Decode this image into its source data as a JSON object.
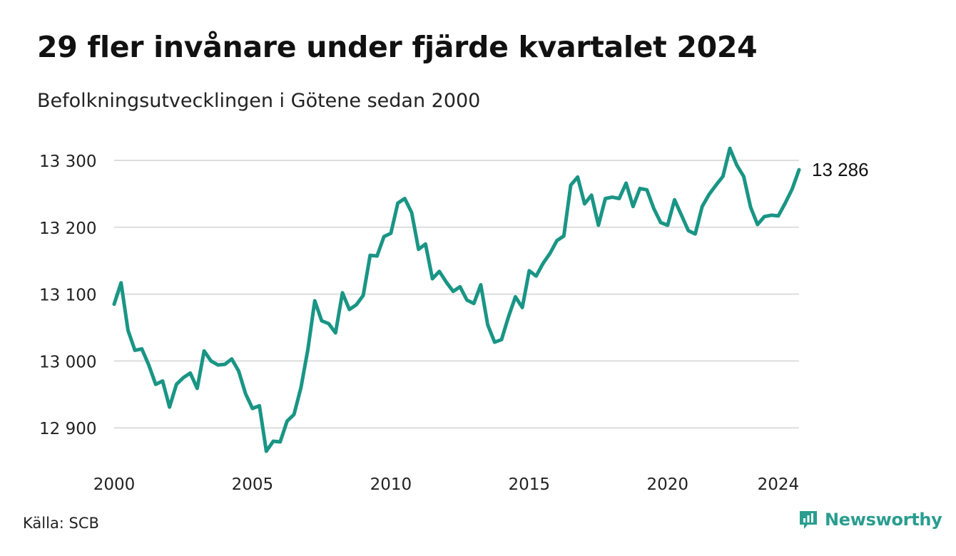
{
  "header": {
    "title": "29 fler invånare under fjärde kvartalet 2024",
    "subtitle": "Befolkningsutvecklingen i Götene sedan 2000"
  },
  "footer": {
    "source": "Källa: SCB",
    "brand": "Newsworthy",
    "brand_icon": "newsworthy-logo-icon"
  },
  "colors": {
    "line": "#1a9585",
    "grid": "#dddddd",
    "brand": "#2a9d8f"
  },
  "chart_data": {
    "type": "line",
    "title": "29 fler invånare under fjärde kvartalet 2024",
    "subtitle": "Befolkningsutvecklingen i Götene sedan 2000",
    "xlabel": "",
    "ylabel": "",
    "xlim": [
      2000.0,
      2024.75
    ],
    "ylim": [
      12860,
      13320
    ],
    "y_ticks": [
      12900,
      13000,
      13100,
      13200,
      13300
    ],
    "y_tick_labels": [
      "12 900",
      "13 000",
      "13 100",
      "13 200",
      "13 300"
    ],
    "x_ticks": [
      2000,
      2005,
      2010,
      2015,
      2020,
      2024
    ],
    "x_tick_labels": [
      "2000",
      "2005",
      "2010",
      "2015",
      "2020",
      "2024"
    ],
    "grid": "horizontal",
    "last_value_label": "13 286",
    "series": [
      {
        "x": [
          2000.0,
          2000.25,
          2000.5,
          2000.75,
          2001.0,
          2001.25,
          2001.5,
          2001.75,
          2002.0,
          2002.25,
          2002.5,
          2002.75,
          2003.0,
          2003.25,
          2003.5,
          2003.75,
          2004.0,
          2004.25,
          2004.5,
          2004.75,
          2005.0,
          2005.25,
          2005.5,
          2005.75,
          2006.0,
          2006.25,
          2006.5,
          2006.75,
          2007.0,
          2007.25,
          2007.5,
          2007.75,
          2008.0,
          2008.25,
          2008.5,
          2008.75,
          2009.0,
          2009.25,
          2009.5,
          2009.75,
          2010.0,
          2010.25,
          2010.5,
          2010.75,
          2011.0,
          2011.25,
          2011.5,
          2011.75,
          2012.0,
          2012.25,
          2012.5,
          2012.75,
          2013.0,
          2013.25,
          2013.5,
          2013.75,
          2014.0,
          2014.25,
          2014.5,
          2014.75,
          2015.0,
          2015.25,
          2015.5,
          2015.75,
          2016.0,
          2016.25,
          2016.5,
          2016.75,
          2017.0,
          2017.25,
          2017.5,
          2017.75,
          2018.0,
          2018.25,
          2018.5,
          2018.75,
          2019.0,
          2019.25,
          2019.5,
          2019.75,
          2020.0,
          2020.25,
          2020.5,
          2020.75,
          2021.0,
          2021.25,
          2021.5,
          2021.75,
          2022.0,
          2022.25,
          2022.5,
          2022.75,
          2023.0,
          2023.25,
          2023.5,
          2023.75,
          2024.0,
          2024.25,
          2024.5,
          2024.75
        ],
        "values": [
          13085,
          13117,
          13046,
          13016,
          13018,
          12994,
          12965,
          12970,
          12931,
          12965,
          12975,
          12982,
          12959,
          13015,
          13000,
          12994,
          12995,
          13003,
          12985,
          12951,
          12929,
          12933,
          12865,
          12880,
          12879,
          12910,
          12920,
          12960,
          13017,
          13090,
          13060,
          13056,
          13042,
          13102,
          13077,
          13084,
          13098,
          13158,
          13157,
          13186,
          13191,
          13236,
          13243,
          13222,
          13167,
          13175,
          13123,
          13134,
          13118,
          13104,
          13111,
          13091,
          13086,
          13114,
          13054,
          13028,
          13032,
          13066,
          13096,
          13080,
          13135,
          13127,
          13146,
          13161,
          13180,
          13187,
          13263,
          13275,
          13235,
          13248,
          13203,
          13243,
          13245,
          13243,
          13266,
          13231,
          13258,
          13256,
          13228,
          13207,
          13203,
          13241,
          13218,
          13195,
          13190,
          13231,
          13249,
          13263,
          13276,
          13318,
          13293,
          13276,
          13230,
          13204,
          13216,
          13218,
          13217,
          13236,
          13257,
          13286
        ]
      }
    ]
  }
}
